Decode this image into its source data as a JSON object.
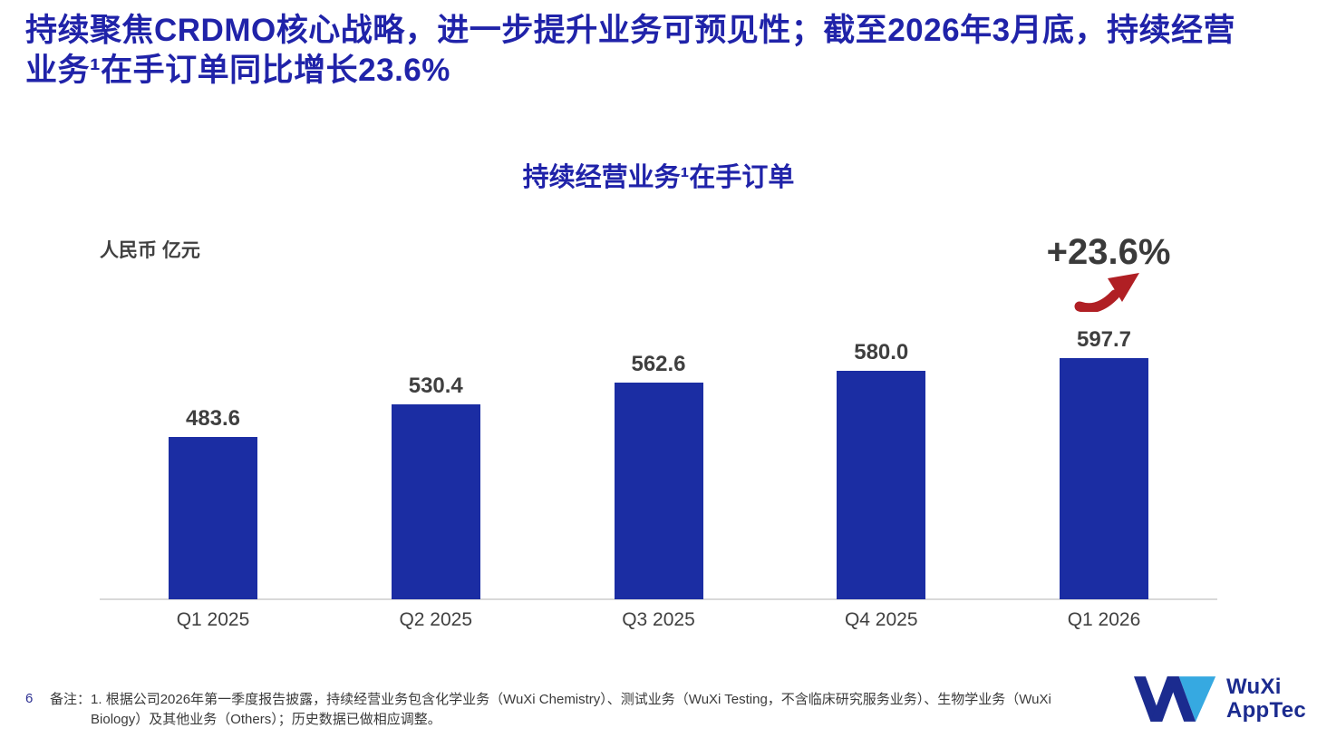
{
  "slide": {
    "title_lines": [
      "持续聚焦CRDMO核心战略，进一步提升业务可预见性；截至2026年3月底，持续经营",
      "业务¹在手订单同比增长23.6%"
    ],
    "page_number": "6",
    "note_label": "备注：",
    "note_text": "1. 根据公司2026年第一季度报告披露，持续经营业务包含化学业务（WuXi Chemistry）、测试业务（WuXi Testing，不含临床研究服务业务）、生物学业务（WuXi Biology）及其他业务（Others）；历史数据已做相应调整。"
  },
  "chart_data": {
    "type": "bar",
    "title": "持续经营业务¹在手订单",
    "unit_label": "人民币 亿元",
    "categories": [
      "Q1 2025",
      "Q2 2025",
      "Q3 2025",
      "Q4 2025",
      "Q1 2026"
    ],
    "values": [
      483.6,
      530.4,
      562.6,
      580.0,
      597.7
    ],
    "data_labels": [
      "483.6",
      "530.4",
      "562.6",
      "580.0",
      "597.7"
    ],
    "annotation": {
      "text": "+23.6%",
      "icon": "up-right-arrow",
      "arrow_color": "#b01f24"
    },
    "bar_color": "#1b2da3",
    "value_label_color": "#3f3f3f",
    "axis_color": "#d9d9d9",
    "grid": false,
    "legend": false,
    "ylim": [
      250,
      650
    ],
    "xlabel": "",
    "ylabel": "人民币 亿元"
  },
  "logo": {
    "line1": "WuXi",
    "line2": "AppTec",
    "dark_blue": "#1b2b8f",
    "light_blue": "#36a9e1"
  },
  "colors": {
    "headline_blue": "#2023a9",
    "bar_blue": "#1b2da3",
    "text_gray": "#3f3f3f",
    "axis_gray": "#d9d9d9",
    "arrow_red": "#b01f24",
    "page_number_blue": "#2e3192"
  }
}
